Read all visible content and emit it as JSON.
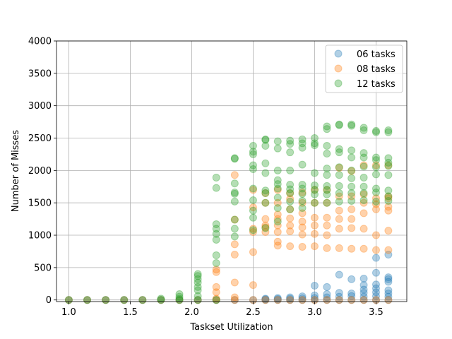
{
  "chart_data": {
    "type": "scatter",
    "xlabel": "Taskset Utilization",
    "ylabel": "Number of Misses",
    "xlim": [
      0.9,
      3.75
    ],
    "ylim": [
      -25,
      4000
    ],
    "xticks": [
      1.0,
      1.5,
      2.0,
      2.5,
      3.0,
      3.5
    ],
    "yticks": [
      0,
      500,
      1000,
      1500,
      2000,
      2500,
      3000,
      3500,
      4000
    ],
    "grid": true,
    "legend_position": "top-right",
    "marker_alpha": 0.35,
    "series": [
      {
        "name": "06 tasks",
        "color": "#1f77b4",
        "points": [
          [
            1.0,
            0
          ],
          [
            1.15,
            0
          ],
          [
            1.3,
            0
          ],
          [
            1.45,
            0
          ],
          [
            1.6,
            0
          ],
          [
            1.75,
            0
          ],
          [
            1.9,
            0
          ],
          [
            2.05,
            0
          ],
          [
            2.2,
            0
          ],
          [
            2.35,
            0
          ],
          [
            2.5,
            0
          ],
          [
            2.6,
            0
          ],
          [
            2.6,
            10
          ],
          [
            2.6,
            20
          ],
          [
            2.7,
            0
          ],
          [
            2.7,
            15
          ],
          [
            2.7,
            30
          ],
          [
            2.8,
            0
          ],
          [
            2.8,
            20
          ],
          [
            2.8,
            40
          ],
          [
            2.9,
            0
          ],
          [
            2.9,
            25
          ],
          [
            2.9,
            55
          ],
          [
            3.0,
            0
          ],
          [
            3.0,
            30
          ],
          [
            3.0,
            70
          ],
          [
            3.0,
            220
          ],
          [
            3.1,
            0
          ],
          [
            3.1,
            40
          ],
          [
            3.1,
            90
          ],
          [
            3.1,
            200
          ],
          [
            3.2,
            0
          ],
          [
            3.2,
            50
          ],
          [
            3.2,
            110
          ],
          [
            3.2,
            390
          ],
          [
            3.3,
            0
          ],
          [
            3.3,
            60
          ],
          [
            3.3,
            100
          ],
          [
            3.3,
            320
          ],
          [
            3.4,
            0
          ],
          [
            3.4,
            50
          ],
          [
            3.4,
            110
          ],
          [
            3.4,
            160
          ],
          [
            3.4,
            230
          ],
          [
            3.4,
            330
          ],
          [
            3.5,
            0
          ],
          [
            3.5,
            60
          ],
          [
            3.5,
            120
          ],
          [
            3.5,
            180
          ],
          [
            3.5,
            240
          ],
          [
            3.5,
            420
          ],
          [
            3.5,
            650
          ],
          [
            3.6,
            0
          ],
          [
            3.6,
            50
          ],
          [
            3.6,
            100
          ],
          [
            3.6,
            150
          ],
          [
            3.6,
            280
          ],
          [
            3.6,
            320
          ],
          [
            3.6,
            350
          ],
          [
            3.6,
            700
          ]
        ]
      },
      {
        "name": "08 tasks",
        "color": "#ff7f0e",
        "points": [
          [
            1.0,
            0
          ],
          [
            1.15,
            0
          ],
          [
            1.3,
            0
          ],
          [
            1.45,
            0
          ],
          [
            1.6,
            0
          ],
          [
            1.75,
            0
          ],
          [
            1.9,
            0
          ],
          [
            2.05,
            0
          ],
          [
            2.2,
            0
          ],
          [
            2.2,
            20
          ],
          [
            2.2,
            120
          ],
          [
            2.2,
            200
          ],
          [
            2.2,
            430
          ],
          [
            2.2,
            470
          ],
          [
            2.35,
            0
          ],
          [
            2.35,
            40
          ],
          [
            2.35,
            270
          ],
          [
            2.35,
            700
          ],
          [
            2.35,
            860
          ],
          [
            2.35,
            1240
          ],
          [
            2.35,
            1930
          ],
          [
            2.5,
            0
          ],
          [
            2.5,
            230
          ],
          [
            2.5,
            740
          ],
          [
            2.5,
            1050
          ],
          [
            2.5,
            1100
          ],
          [
            2.5,
            1430
          ],
          [
            2.5,
            1700
          ],
          [
            2.6,
            0
          ],
          [
            2.6,
            1050
          ],
          [
            2.6,
            1120
          ],
          [
            2.6,
            1150
          ],
          [
            2.6,
            1250
          ],
          [
            2.6,
            1500
          ],
          [
            2.6,
            1650
          ],
          [
            2.7,
            0
          ],
          [
            2.7,
            840
          ],
          [
            2.7,
            900
          ],
          [
            2.7,
            1050
          ],
          [
            2.7,
            1150
          ],
          [
            2.7,
            1250
          ],
          [
            2.7,
            1320
          ],
          [
            2.7,
            1500
          ],
          [
            2.7,
            1700
          ],
          [
            2.8,
            0
          ],
          [
            2.8,
            830
          ],
          [
            2.8,
            1060
          ],
          [
            2.8,
            1150
          ],
          [
            2.8,
            1260
          ],
          [
            2.8,
            1400
          ],
          [
            2.8,
            1560
          ],
          [
            2.8,
            1650
          ],
          [
            2.9,
            0
          ],
          [
            2.9,
            820
          ],
          [
            2.9,
            1010
          ],
          [
            2.9,
            1120
          ],
          [
            2.9,
            1210
          ],
          [
            2.9,
            1340
          ],
          [
            2.9,
            1500
          ],
          [
            2.9,
            1660
          ],
          [
            3.0,
            0
          ],
          [
            3.0,
            830
          ],
          [
            3.0,
            1020
          ],
          [
            3.0,
            1150
          ],
          [
            3.0,
            1270
          ],
          [
            3.0,
            1500
          ],
          [
            3.0,
            1700
          ],
          [
            3.1,
            0
          ],
          [
            3.1,
            800
          ],
          [
            3.1,
            1000
          ],
          [
            3.1,
            1150
          ],
          [
            3.1,
            1270
          ],
          [
            3.1,
            1500
          ],
          [
            3.1,
            1700
          ],
          [
            3.2,
            0
          ],
          [
            3.2,
            800
          ],
          [
            3.2,
            1100
          ],
          [
            3.2,
            1250
          ],
          [
            3.2,
            1380
          ],
          [
            3.2,
            1600
          ],
          [
            3.2,
            2040
          ],
          [
            3.3,
            0
          ],
          [
            3.3,
            790
          ],
          [
            3.3,
            1110
          ],
          [
            3.3,
            1250
          ],
          [
            3.3,
            1400
          ],
          [
            3.3,
            1600
          ],
          [
            3.3,
            1990
          ],
          [
            3.4,
            0
          ],
          [
            3.4,
            790
          ],
          [
            3.4,
            1100
          ],
          [
            3.4,
            1340
          ],
          [
            3.4,
            1500
          ],
          [
            3.4,
            1630
          ],
          [
            3.4,
            2080
          ],
          [
            3.5,
            0
          ],
          [
            3.5,
            770
          ],
          [
            3.5,
            1000
          ],
          [
            3.5,
            1400
          ],
          [
            3.5,
            1480
          ],
          [
            3.5,
            1570
          ],
          [
            3.5,
            2080
          ],
          [
            3.6,
            0
          ],
          [
            3.6,
            770
          ],
          [
            3.6,
            1070
          ],
          [
            3.6,
            1380
          ],
          [
            3.6,
            1440
          ],
          [
            3.6,
            1570
          ],
          [
            3.6,
            1600
          ],
          [
            3.6,
            2080
          ]
        ]
      },
      {
        "name": "12 tasks",
        "color": "#2ca02c",
        "points": [
          [
            1.0,
            0
          ],
          [
            1.15,
            0
          ],
          [
            1.3,
            0
          ],
          [
            1.45,
            0
          ],
          [
            1.6,
            0
          ],
          [
            1.75,
            0
          ],
          [
            1.75,
            20
          ],
          [
            1.9,
            0
          ],
          [
            1.9,
            20
          ],
          [
            1.9,
            50
          ],
          [
            1.9,
            90
          ],
          [
            2.05,
            0
          ],
          [
            2.05,
            60
          ],
          [
            2.05,
            150
          ],
          [
            2.05,
            200
          ],
          [
            2.05,
            270
          ],
          [
            2.05,
            320
          ],
          [
            2.05,
            370
          ],
          [
            2.05,
            400
          ],
          [
            2.2,
            0
          ],
          [
            2.2,
            570
          ],
          [
            2.2,
            690
          ],
          [
            2.2,
            930
          ],
          [
            2.2,
            1020
          ],
          [
            2.2,
            1100
          ],
          [
            2.2,
            1170
          ],
          [
            2.2,
            1730
          ],
          [
            2.2,
            1890
          ],
          [
            2.35,
            980
          ],
          [
            2.35,
            1100
          ],
          [
            2.35,
            1240
          ],
          [
            2.35,
            1520
          ],
          [
            2.35,
            1640
          ],
          [
            2.35,
            1660
          ],
          [
            2.35,
            1800
          ],
          [
            2.35,
            2180
          ],
          [
            2.35,
            2190
          ],
          [
            2.5,
            1080
          ],
          [
            2.5,
            1270
          ],
          [
            2.5,
            1380
          ],
          [
            2.5,
            1540
          ],
          [
            2.5,
            1720
          ],
          [
            2.5,
            2020
          ],
          [
            2.5,
            2080
          ],
          [
            2.5,
            2250
          ],
          [
            2.5,
            2290
          ],
          [
            2.5,
            2380
          ],
          [
            2.6,
            1110
          ],
          [
            2.6,
            1500
          ],
          [
            2.6,
            1650
          ],
          [
            2.6,
            1690
          ],
          [
            2.6,
            1960
          ],
          [
            2.6,
            2110
          ],
          [
            2.6,
            2380
          ],
          [
            2.6,
            2470
          ],
          [
            2.6,
            2480
          ],
          [
            2.7,
            1210
          ],
          [
            2.7,
            1420
          ],
          [
            2.7,
            1580
          ],
          [
            2.7,
            1720
          ],
          [
            2.7,
            1790
          ],
          [
            2.7,
            1850
          ],
          [
            2.7,
            2000
          ],
          [
            2.7,
            2340
          ],
          [
            2.7,
            2450
          ],
          [
            2.8,
            1400
          ],
          [
            2.8,
            1520
          ],
          [
            2.8,
            1650
          ],
          [
            2.8,
            1710
          ],
          [
            2.8,
            1780
          ],
          [
            2.8,
            2000
          ],
          [
            2.8,
            2280
          ],
          [
            2.8,
            2410
          ],
          [
            2.8,
            2460
          ],
          [
            2.9,
            1420
          ],
          [
            2.9,
            1530
          ],
          [
            2.9,
            1640
          ],
          [
            2.9,
            1720
          ],
          [
            2.9,
            1780
          ],
          [
            2.9,
            2090
          ],
          [
            2.9,
            2350
          ],
          [
            2.9,
            2420
          ],
          [
            2.9,
            2480
          ],
          [
            3.0,
            1500
          ],
          [
            3.0,
            1630
          ],
          [
            3.0,
            1700
          ],
          [
            3.0,
            1770
          ],
          [
            3.0,
            1960
          ],
          [
            3.0,
            2390
          ],
          [
            3.0,
            2420
          ],
          [
            3.0,
            2500
          ],
          [
            3.1,
            1500
          ],
          [
            3.1,
            1630
          ],
          [
            3.1,
            1700
          ],
          [
            3.1,
            1760
          ],
          [
            3.1,
            1930
          ],
          [
            3.1,
            2030
          ],
          [
            3.1,
            2260
          ],
          [
            3.1,
            2380
          ],
          [
            3.1,
            2640
          ],
          [
            3.1,
            2680
          ],
          [
            3.2,
            1520
          ],
          [
            3.2,
            1650
          ],
          [
            3.2,
            1760
          ],
          [
            3.2,
            1930
          ],
          [
            3.2,
            2050
          ],
          [
            3.2,
            2280
          ],
          [
            3.2,
            2330
          ],
          [
            3.2,
            2700
          ],
          [
            3.2,
            2710
          ],
          [
            3.3,
            1530
          ],
          [
            3.3,
            1650
          ],
          [
            3.3,
            1750
          ],
          [
            3.3,
            1880
          ],
          [
            3.3,
            2000
          ],
          [
            3.3,
            2200
          ],
          [
            3.3,
            2310
          ],
          [
            3.3,
            2690
          ],
          [
            3.3,
            2710
          ],
          [
            3.4,
            1540
          ],
          [
            3.4,
            1650
          ],
          [
            3.4,
            1750
          ],
          [
            3.4,
            1890
          ],
          [
            3.4,
            2060
          ],
          [
            3.4,
            2200
          ],
          [
            3.4,
            2270
          ],
          [
            3.4,
            2620
          ],
          [
            3.4,
            2660
          ],
          [
            3.5,
            1520
          ],
          [
            3.5,
            1660
          ],
          [
            3.5,
            1720
          ],
          [
            3.5,
            1940
          ],
          [
            3.5,
            2050
          ],
          [
            3.5,
            2160
          ],
          [
            3.5,
            2200
          ],
          [
            3.5,
            2590
          ],
          [
            3.5,
            2610
          ],
          [
            3.6,
            1530
          ],
          [
            3.6,
            1600
          ],
          [
            3.6,
            1690
          ],
          [
            3.6,
            1930
          ],
          [
            3.6,
            2070
          ],
          [
            3.6,
            2120
          ],
          [
            3.6,
            2190
          ],
          [
            3.6,
            2590
          ],
          [
            3.6,
            2620
          ]
        ]
      }
    ]
  }
}
